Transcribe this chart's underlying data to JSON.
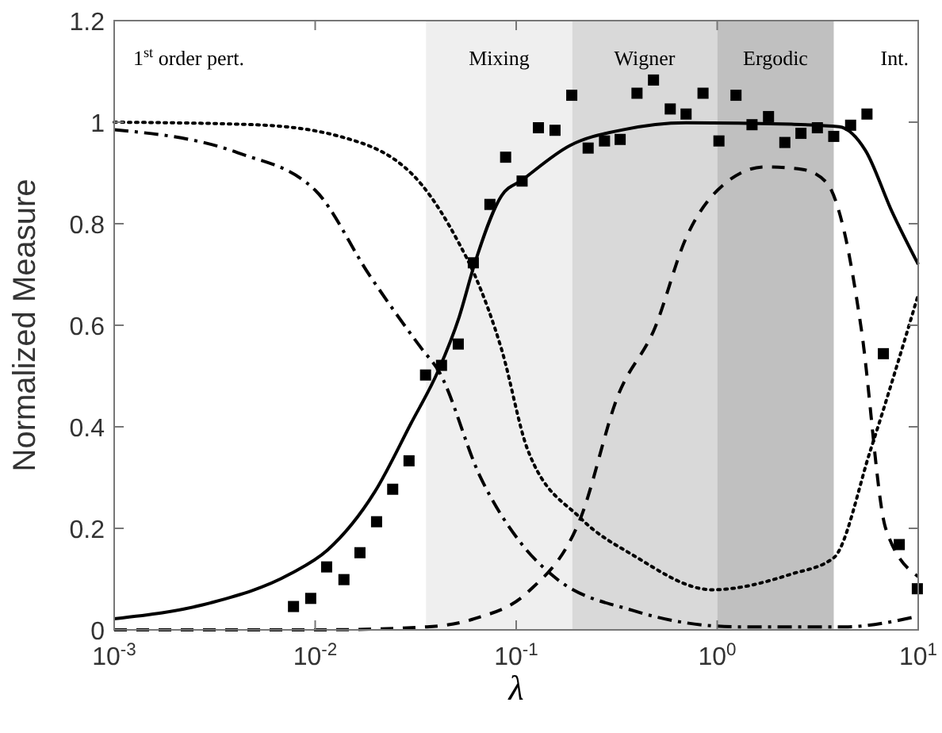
{
  "chart_data": {
    "type": "line",
    "xlabel": "λ",
    "ylabel": "Normalized Measure",
    "log": "x",
    "xlim": [
      0.001,
      10
    ],
    "xticks": [
      {
        "value": 0.001,
        "label": "10$^{-3}$"
      },
      {
        "value": 0.01,
        "label": "10$^{-2}$"
      },
      {
        "value": 0.1,
        "label": "10$^{-1}$"
      },
      {
        "value": 1,
        "label": "10$^{0}$"
      },
      {
        "value": 10,
        "label": "10$^{1}$"
      }
    ],
    "ylim": [
      0,
      1.2
    ],
    "yticks": [
      0,
      0.2,
      0.4,
      0.6,
      0.8,
      1,
      1.2
    ],
    "bands": [
      {
        "axis": "x",
        "from": 0.0356,
        "to": 0.19,
        "label": "Mixing",
        "color": "#efefef"
      },
      {
        "axis": "x",
        "from": 0.19,
        "to": 1.0,
        "label": "Wigner",
        "color": "#d9d9d9"
      },
      {
        "axis": "x",
        "from": 1.0,
        "to": 3.8,
        "label": "Ergodic",
        "color": "#c0c0c0"
      }
    ],
    "annotations": [
      "1$^{st}$ order pert.",
      "Int."
    ],
    "series": [
      {
        "type": "line",
        "line_style": "solid",
        "color": "#000000",
        "x": [
          0.001,
          0.003,
          0.0075,
          0.0115,
          0.0198,
          0.03,
          0.041,
          0.052,
          0.062,
          0.0845,
          0.107,
          0.185,
          0.339,
          0.7,
          2.34,
          4.04,
          5.47,
          7.4,
          10
        ],
        "values": [
          0.022,
          0.053,
          0.11,
          0.157,
          0.272,
          0.407,
          0.511,
          0.616,
          0.72,
          0.855,
          0.886,
          0.954,
          0.985,
          0.999,
          0.996,
          0.991,
          0.944,
          0.824,
          0.72
        ]
      },
      {
        "type": "line",
        "line_style": "dotted",
        "color": "#000000",
        "x": [
          0.001,
          0.005,
          0.0138,
          0.034,
          0.052,
          0.062,
          0.0845,
          0.114,
          0.209,
          0.382,
          0.946,
          2.34,
          3.8,
          5.8,
          10
        ],
        "values": [
          1.0,
          0.995,
          0.97,
          0.876,
          0.761,
          0.7,
          0.553,
          0.355,
          0.22,
          0.147,
          0.079,
          0.11,
          0.142,
          0.355,
          0.66
        ]
      },
      {
        "type": "line",
        "line_style": "dashdot",
        "color": "#000000",
        "x": [
          0.001,
          0.0041,
          0.01,
          0.0186,
          0.034,
          0.041,
          0.066,
          0.107,
          0.154,
          0.382,
          1.27,
          4.3,
          10
        ],
        "values": [
          0.985,
          0.94,
          0.866,
          0.699,
          0.553,
          0.511,
          0.303,
          0.168,
          0.105,
          0.038,
          0.006,
          0.006,
          0.027
        ]
      },
      {
        "type": "line",
        "line_style": "dashed",
        "color": "#000000",
        "x": [
          0.001,
          0.01,
          0.036,
          0.062,
          0.114,
          0.209,
          0.32,
          0.49,
          0.7,
          1.07,
          1.73,
          2.64,
          3.5,
          4.3,
          5.2,
          6.9,
          10
        ],
        "values": [
          0,
          0,
          0.006,
          0.022,
          0.074,
          0.22,
          0.46,
          0.595,
          0.772,
          0.876,
          0.912,
          0.907,
          0.881,
          0.782,
          0.595,
          0.199,
          0.105
        ]
      },
      {
        "type": "scatter",
        "marker": "square",
        "color": "#000000",
        "x": [
          0.0078,
          0.0095,
          0.0114,
          0.0139,
          0.0167,
          0.0202,
          0.0243,
          0.0293,
          0.0354,
          0.0425,
          0.0515,
          0.0612,
          0.074,
          0.0886,
          0.107,
          0.129,
          0.156,
          0.189,
          0.228,
          0.275,
          0.329,
          0.399,
          0.482,
          0.584,
          0.7,
          0.85,
          1.02,
          1.24,
          1.49,
          1.8,
          2.17,
          2.61,
          3.15,
          3.8,
          4.61,
          5.56,
          6.71,
          8.05,
          9.9
        ],
        "values": [
          0.046,
          0.062,
          0.124,
          0.099,
          0.152,
          0.213,
          0.277,
          0.333,
          0.502,
          0.521,
          0.563,
          0.723,
          0.838,
          0.931,
          0.884,
          0.989,
          0.984,
          1.053,
          0.949,
          0.963,
          0.966,
          1.057,
          1.083,
          1.026,
          1.016,
          1.057,
          0.963,
          1.053,
          0.995,
          1.011,
          0.96,
          0.978,
          0.989,
          0.972,
          0.994,
          1.016,
          0.544,
          0.168,
          0.081
        ]
      }
    ]
  }
}
